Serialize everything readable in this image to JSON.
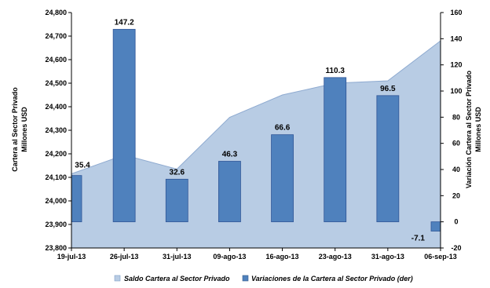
{
  "chart_data": {
    "type": "bar+area",
    "categories": [
      "19-jul-13",
      "26-jul-13",
      "31-jul-13",
      "09-ago-13",
      "16-ago-13",
      "23-ago-13",
      "31-ago-13",
      "06-sep-13"
    ],
    "series": [
      {
        "name": "Saldo Cartera al Sector Privado",
        "type": "area",
        "axis": "left",
        "values": [
          24115,
          24195,
          24135,
          24355,
          24450,
          24500,
          24510,
          24680
        ],
        "color": "#b8cce4"
      },
      {
        "name": "Variaciones de la Cartera al Sector Privado (der)",
        "type": "bar",
        "axis": "right",
        "values": [
          35.4,
          147.2,
          32.6,
          46.3,
          66.6,
          110.3,
          96.5,
          -7.1
        ],
        "labels": [
          "35.4",
          "147.2",
          "32.6",
          "46.3",
          "66.6",
          "110.3",
          "96.5",
          "-7.1"
        ],
        "color": "#4f81bd"
      }
    ],
    "y_left": {
      "label_line1": "Cartera al Sector Privado",
      "label_line2": "Millones USD",
      "min": 23800,
      "max": 24800,
      "ticks": [
        "23,800",
        "23,900",
        "24,000",
        "24,100",
        "24,200",
        "24,300",
        "24,400",
        "24,500",
        "24,600",
        "24,700",
        "24,800"
      ]
    },
    "y_right": {
      "label_line1": "Variación Cartera al Sector Privado",
      "label_line2": "Millones USD",
      "min": -20,
      "max": 160,
      "ticks": [
        "-20",
        "0",
        "20",
        "40",
        "60",
        "80",
        "100",
        "120",
        "140",
        "160"
      ]
    },
    "legend": {
      "position": "bottom",
      "items": [
        "Saldo Cartera al Sector Privado",
        "Variaciones de la Cartera al Sector Privado (der)"
      ]
    },
    "grid": false
  }
}
